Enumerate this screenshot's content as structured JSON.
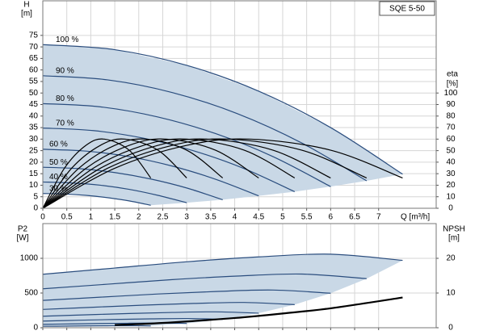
{
  "chart_data": [
    {
      "type": "pump-curve",
      "title": "SQE 5-50",
      "xlabel": "Q [m³/h]",
      "ylabel": "H",
      "yunit": "[m]",
      "y2label": "eta",
      "y2unit": "[%]",
      "xlim": [
        0,
        8.2
      ],
      "ylim": [
        0,
        90
      ],
      "y2lim": [
        0,
        180
      ],
      "xticks": [
        0,
        0.5,
        1,
        1.5,
        2,
        2.5,
        3,
        3.5,
        4,
        4.5,
        5,
        5.5,
        6,
        6.5,
        7
      ],
      "yticks": [
        0,
        5,
        10,
        15,
        20,
        25,
        30,
        35,
        40,
        45,
        50,
        55,
        60,
        65,
        70,
        75
      ],
      "y2ticks": [
        0,
        10,
        20,
        30,
        40,
        50,
        60,
        70,
        80,
        90,
        100
      ],
      "grid": true,
      "area_color": "#c9d8e6",
      "series": [
        {
          "name": "100 %",
          "color": "#2a4d7e",
          "x": [
            0,
            1.5,
            3,
            4.5,
            6,
            7.5
          ],
          "values": [
            71,
            68.8,
            62,
            50.8,
            35,
            14.8
          ]
        },
        {
          "name": "90 %",
          "color": "#2a4d7e",
          "x": [
            0,
            1.35,
            2.7,
            4.05,
            5.4,
            6.75
          ],
          "values": [
            57.5,
            55.7,
            50.2,
            41.1,
            28.3,
            11.9
          ]
        },
        {
          "name": "80 %",
          "color": "#2a4d7e",
          "x": [
            0,
            1.2,
            2.4,
            3.6,
            4.8,
            6
          ],
          "values": [
            45.4,
            44.0,
            39.6,
            32.4,
            22.4,
            9.4
          ]
        },
        {
          "name": "70 %",
          "color": "#2a4d7e",
          "x": [
            0,
            1.05,
            2.1,
            3.15,
            4.2,
            5.25
          ],
          "values": [
            34.8,
            33.7,
            30.4,
            24.9,
            17.2,
            7.2
          ]
        },
        {
          "name": "60 %",
          "color": "#2a4d7e",
          "x": [
            0,
            0.9,
            1.8,
            2.7,
            3.6,
            4.5
          ],
          "values": [
            25.6,
            24.8,
            22.4,
            18.3,
            12.6,
            5.4
          ]
        },
        {
          "name": "50 %",
          "color": "#2a4d7e",
          "x": [
            0,
            0.75,
            1.5,
            2.25,
            3,
            3.75
          ],
          "values": [
            17.8,
            17.2,
            15.5,
            12.7,
            8.8,
            3.7
          ]
        },
        {
          "name": "40 %",
          "color": "#2a4d7e",
          "x": [
            0,
            0.6,
            1.2,
            1.8,
            2.4,
            3
          ],
          "values": [
            11.4,
            11.0,
            10.0,
            8.2,
            5.6,
            2.4
          ]
        },
        {
          "name": "30 %",
          "color": "#2a4d7e",
          "x": [
            0,
            0.45,
            0.9,
            1.35,
            1.8,
            2.25
          ],
          "values": [
            6.4,
            6.2,
            5.6,
            4.6,
            3.2,
            1.3
          ]
        },
        {
          "color": "#000000",
          "axis": "y2",
          "x": [
            0,
            1.5,
            3,
            4.3,
            6,
            7.5
          ],
          "values": [
            0,
            34.7,
            54.6,
            60,
            50.4,
            26.3
          ]
        },
        {
          "color": "#000000",
          "axis": "y2",
          "x": [
            0,
            1.35,
            2.7,
            3.85,
            5.4,
            6.75
          ],
          "values": [
            0,
            34.7,
            54.6,
            60,
            50.4,
            26.3
          ]
        },
        {
          "color": "#000000",
          "axis": "y2",
          "x": [
            0,
            1.2,
            2.4,
            3.42,
            4.8,
            6
          ],
          "values": [
            0,
            34.7,
            54.6,
            60,
            50.4,
            26.3
          ]
        },
        {
          "color": "#000000",
          "axis": "y2",
          "x": [
            0,
            1.05,
            2.1,
            3,
            4.2,
            5.25
          ],
          "values": [
            0,
            34.7,
            54.6,
            60,
            50.4,
            26.3
          ]
        },
        {
          "color": "#000000",
          "axis": "y2",
          "x": [
            0,
            0.9,
            1.8,
            2.57,
            3.6,
            4.5
          ],
          "values": [
            0,
            34.7,
            54.6,
            60,
            50.4,
            26.3
          ]
        },
        {
          "color": "#000000",
          "axis": "y2",
          "x": [
            0,
            0.75,
            1.5,
            2.14,
            3,
            3.75
          ],
          "values": [
            0,
            34.7,
            54.6,
            60,
            50.4,
            26.3
          ]
        },
        {
          "color": "#000000",
          "axis": "y2",
          "x": [
            0,
            0.6,
            1.2,
            1.71,
            2.4,
            3
          ],
          "values": [
            0,
            34.7,
            54.6,
            60,
            50.4,
            26.3
          ]
        },
        {
          "color": "#000000",
          "axis": "y2",
          "x": [
            0,
            0.45,
            0.9,
            1.28,
            1.8,
            2.25
          ],
          "values": [
            0,
            34.7,
            54.6,
            60,
            50.4,
            26.3
          ]
        }
      ]
    },
    {
      "type": "pump-curve",
      "ylabel": "P2",
      "yunit": "[W]",
      "y2label": "NPSH",
      "y2unit": "[m]",
      "xlim": [
        0,
        8.2
      ],
      "ylim": [
        0,
        1500
      ],
      "y2lim": [
        0,
        30
      ],
      "xticks": [
        0,
        0.5,
        1,
        1.5,
        2,
        2.5,
        3,
        3.5,
        4,
        4.5,
        5,
        5.5,
        6,
        6.5,
        7
      ],
      "yticks": [
        0,
        500,
        1000
      ],
      "y2ticks": [
        0,
        10,
        20
      ],
      "grid": true,
      "area_color": "#c9d8e6",
      "series": [
        {
          "color": "#2a4d7e",
          "x": [
            0,
            1.5,
            3,
            4.5,
            6,
            7.5
          ],
          "values": [
            770,
            860,
            950,
            1020,
            1060,
            970
          ]
        },
        {
          "color": "#2a4d7e",
          "x": [
            0,
            1.35,
            2.7,
            4.05,
            5.4,
            6.75
          ],
          "values": [
            561,
            627,
            693,
            744,
            773,
            707
          ]
        },
        {
          "color": "#2a4d7e",
          "x": [
            0,
            1.2,
            2.4,
            3.6,
            4.8,
            6
          ],
          "values": [
            394,
            440,
            486,
            522,
            543,
            497
          ]
        },
        {
          "color": "#2a4d7e",
          "x": [
            0,
            1.05,
            2.1,
            3.15,
            4.2,
            5.25
          ],
          "values": [
            264,
            295,
            326,
            350,
            364,
            333
          ]
        },
        {
          "color": "#2a4d7e",
          "x": [
            0,
            0.9,
            1.8,
            2.7,
            3.6,
            4.5
          ],
          "values": [
            166,
            186,
            205,
            220,
            229,
            210
          ]
        },
        {
          "color": "#2a4d7e",
          "x": [
            0,
            0.75,
            1.5,
            2.25,
            3,
            3.75
          ],
          "values": [
            96,
            108,
            119,
            128,
            133,
            121
          ]
        },
        {
          "color": "#2a4d7e",
          "x": [
            0,
            0.6,
            1.2,
            1.8,
            2.4,
            3
          ],
          "values": [
            49,
            55,
            61,
            65,
            68,
            62
          ]
        },
        {
          "color": "#2a4d7e",
          "x": [
            0,
            0.45,
            0.9,
            1.35,
            1.8,
            2.25
          ],
          "values": [
            21,
            23,
            26,
            28,
            29,
            26
          ]
        },
        {
          "color": "#000000",
          "axis": "y2",
          "x": [
            1.5,
            2.25,
            3,
            4,
            5,
            6,
            7.5
          ],
          "values": [
            0.8,
            1.2,
            1.8,
            2.8,
            4.1,
            5.6,
            8.7
          ]
        }
      ]
    }
  ]
}
